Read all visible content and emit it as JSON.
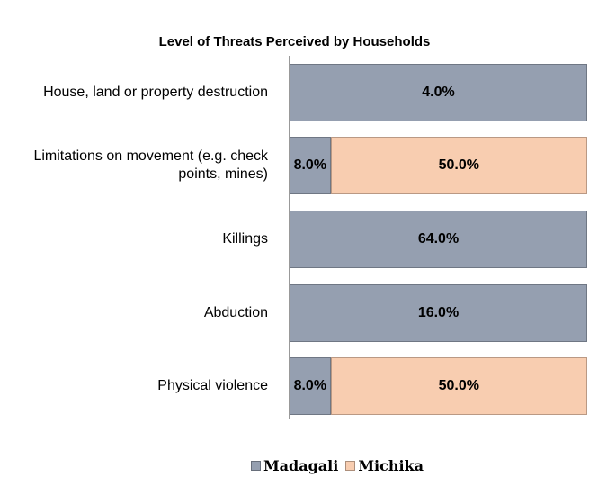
{
  "chart_data": {
    "type": "bar",
    "orientation": "horizontal",
    "stacking": "percent",
    "title": "Level of Threats Perceived by Households",
    "categories": [
      "House, land or property destruction",
      "Limitations on movement (e.g. check points, mines)",
      "Killings",
      "Abduction",
      "Physical violence"
    ],
    "series": [
      {
        "name": "Madagali",
        "color": "#959fb0",
        "values": [
          4.0,
          8.0,
          64.0,
          16.0,
          8.0
        ],
        "value_labels": [
          "4.0%",
          "8.0%",
          "64.0%",
          "16.0%",
          "8.0%"
        ]
      },
      {
        "name": "Michika",
        "color": "#f8cdb0",
        "values": [
          null,
          50.0,
          null,
          null,
          50.0
        ],
        "value_labels": [
          null,
          "50.0%",
          null,
          null,
          "50.0%"
        ]
      }
    ],
    "legend": "bottom"
  }
}
